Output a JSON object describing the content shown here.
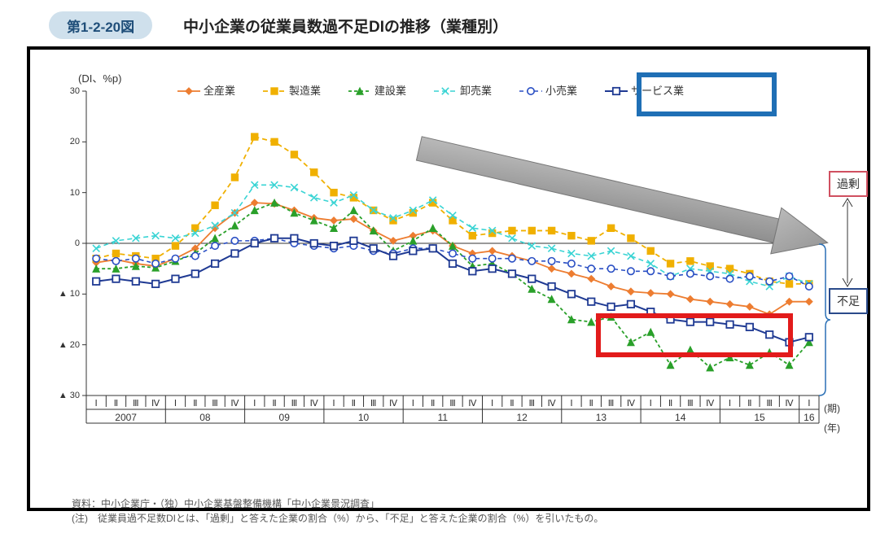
{
  "header": {
    "figNumber": "第1-2-20図",
    "title": "中小企業の従業員数過不足DIの推移（業種別）"
  },
  "chart": {
    "type": "line",
    "yUnit": "(DI、%p)",
    "ylim": [
      -30,
      30
    ],
    "ytick_step": 10,
    "yTickLabels": [
      "30",
      "20",
      "10",
      "0",
      "▲ 10",
      "▲ 20",
      "▲ 30"
    ],
    "yTickValues": [
      30,
      20,
      10,
      0,
      -10,
      -20,
      -30
    ],
    "background_color": "#ffffff",
    "axis_color": "#333333",
    "xSuffix": {
      "quarter": "(期)",
      "year": "(年)"
    },
    "rightLabels": {
      "surplus": "過剰",
      "shortage": "不足"
    },
    "quarters": [
      "Ⅰ",
      "Ⅱ",
      "Ⅲ",
      "Ⅳ"
    ],
    "years": [
      "2007",
      "08",
      "09",
      "10",
      "11",
      "12",
      "13",
      "14",
      "15",
      "16"
    ],
    "yearQuarterCounts": [
      4,
      4,
      4,
      4,
      4,
      4,
      4,
      4,
      4,
      1
    ],
    "legend": [
      {
        "label": "全産業",
        "color": "#ed7d31",
        "marker": "diamond",
        "dash": "",
        "lw": 1.8
      },
      {
        "label": "製造業",
        "color": "#f0b000",
        "marker": "square",
        "dash": "6,4",
        "lw": 1.8
      },
      {
        "label": "建設業",
        "color": "#2aa02a",
        "marker": "triangle",
        "dash": "4,3",
        "lw": 1.8
      },
      {
        "label": "卸売業",
        "color": "#3ad4d4",
        "marker": "x",
        "dash": "6,4",
        "lw": 1.6
      },
      {
        "label": "小売業",
        "color": "#2a4fc4",
        "marker": "circleOpen",
        "dash": "5,4",
        "lw": 1.6
      },
      {
        "label": "サービス業",
        "color": "#1f3a93",
        "marker": "squareOpen",
        "dash": "",
        "lw": 2.0
      }
    ],
    "series": {
      "all": [
        -3.8,
        -3.2,
        -4.0,
        -4.5,
        -3.0,
        -1.0,
        3.0,
        6.0,
        8.0,
        7.8,
        6.5,
        5.0,
        4.5,
        4.8,
        2.5,
        0.5,
        1.5,
        2.5,
        -0.5,
        -2.0,
        -1.5,
        -2.5,
        -3.5,
        -5.0,
        -6.0,
        -7.0,
        -8.5,
        -9.5,
        -9.8,
        -10.0,
        -11.0,
        -11.5,
        -12.0,
        -12.5,
        -14.0,
        -11.5,
        -11.5
      ],
      "mfg": [
        -3.0,
        -2.0,
        -2.5,
        -3.0,
        -0.5,
        3.0,
        7.5,
        13.0,
        21.0,
        20.0,
        17.5,
        14.0,
        10.0,
        9.0,
        6.5,
        4.5,
        6.0,
        8.0,
        4.5,
        1.5,
        2.0,
        2.5,
        2.5,
        2.5,
        1.5,
        0.5,
        3.0,
        1.0,
        -1.5,
        -4.0,
        -3.5,
        -4.5,
        -5.0,
        -6.0,
        -7.5,
        -8.0,
        -8.0
      ],
      "const": [
        -5.0,
        -5.0,
        -4.5,
        -4.8,
        -3.5,
        -2.0,
        1.0,
        3.5,
        6.5,
        8.0,
        6.0,
        4.5,
        3.0,
        6.5,
        2.5,
        -1.5,
        0.5,
        3.0,
        -0.5,
        -4.5,
        -4.0,
        -6.0,
        -9.0,
        -11.0,
        -15.0,
        -15.5,
        -14.5,
        -19.5,
        -17.5,
        -24.0,
        -21.0,
        -24.5,
        -22.5,
        -24.0,
        -21.5,
        -24.0,
        -19.5
      ],
      "whole": [
        -1.0,
        0.5,
        1.0,
        1.5,
        1.0,
        2.0,
        3.5,
        6.0,
        11.5,
        11.5,
        11.0,
        9.0,
        8.0,
        9.5,
        6.5,
        5.0,
        6.5,
        8.5,
        5.5,
        3.0,
        2.5,
        1.0,
        -0.5,
        -1.0,
        -2.0,
        -2.5,
        -1.5,
        -2.5,
        -4.0,
        -6.5,
        -5.0,
        -5.5,
        -6.0,
        -7.5,
        -8.5,
        -6.5,
        -8.0
      ],
      "retail": [
        -3.0,
        -3.5,
        -3.0,
        -4.0,
        -3.0,
        -2.5,
        -0.5,
        0.5,
        0.5,
        1.0,
        0.0,
        -0.5,
        -1.0,
        -0.5,
        -1.5,
        -2.0,
        -1.0,
        -1.0,
        -2.0,
        -3.0,
        -3.0,
        -3.0,
        -3.5,
        -3.5,
        -4.0,
        -5.0,
        -5.0,
        -5.5,
        -5.5,
        -6.5,
        -6.0,
        -6.5,
        -7.0,
        -6.5,
        -7.5,
        -6.5,
        -8.5
      ],
      "service": [
        -7.5,
        -7.0,
        -7.5,
        -8.0,
        -7.0,
        -6.0,
        -4.0,
        -2.0,
        0.0,
        1.0,
        1.0,
        0.0,
        -0.5,
        0.5,
        -1.0,
        -2.5,
        -1.5,
        -1.0,
        -4.0,
        -5.5,
        -5.0,
        -6.0,
        -7.0,
        -8.5,
        -10.0,
        -11.5,
        -12.5,
        -12.0,
        -13.5,
        -15.0,
        -15.5,
        -15.5,
        -16.0,
        -16.5,
        -18.0,
        -19.5,
        -18.5
      ]
    },
    "seriesOrder": [
      "all",
      "mfg",
      "const",
      "whole",
      "retail",
      "service"
    ],
    "markerSize": 4.2,
    "annotations": {
      "arrow": {
        "color": "#9a9a9a"
      },
      "legendHighlightColor": "#1f6fb5",
      "dataHighlightColor": "#e21b1b"
    }
  },
  "footnotes": {
    "source": "資料：中小企業庁・（独）中小企業基盤整備機構「中小企業景況調査」",
    "note": "(注)　従業員過不足数DIとは、「過剰」と答えた企業の割合（%）から、「不足」と答えた企業の割合（%）を引いたもの。"
  }
}
